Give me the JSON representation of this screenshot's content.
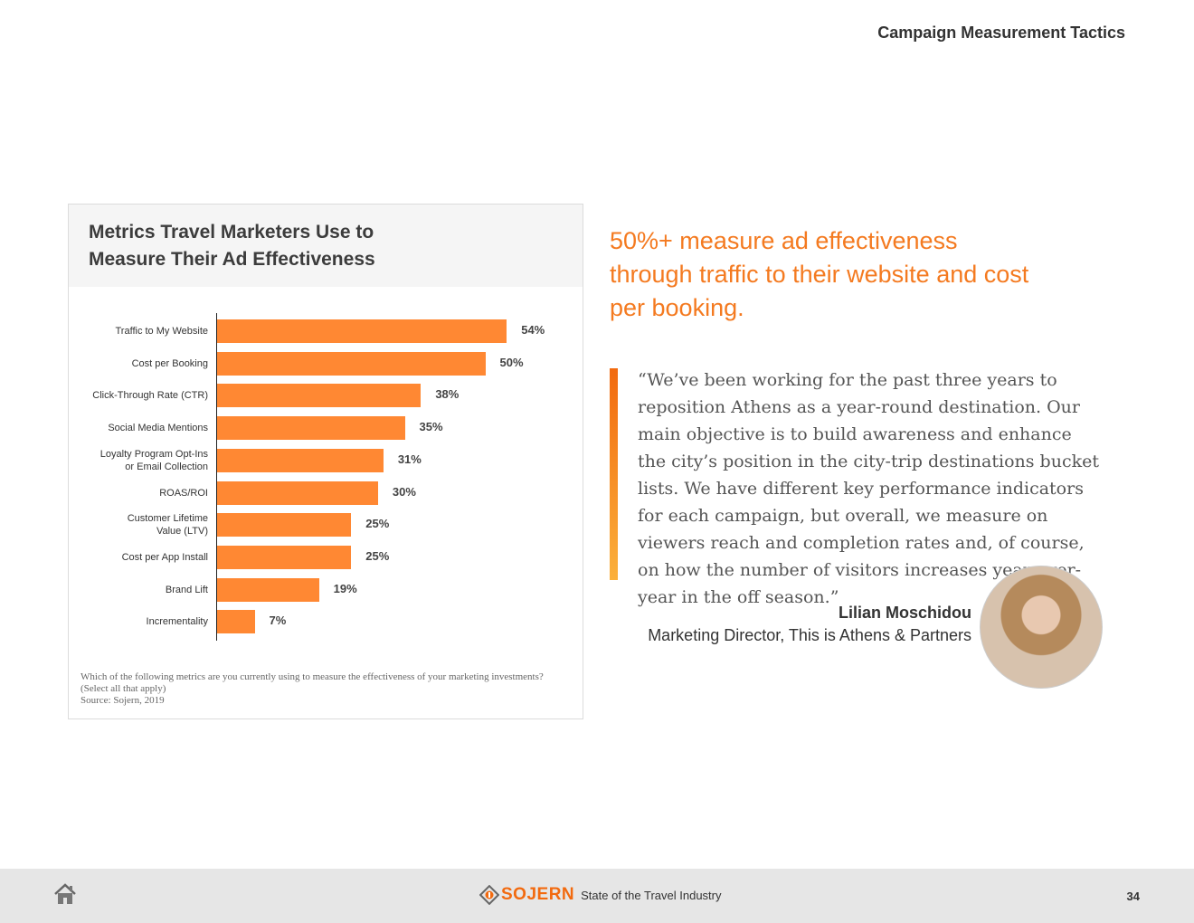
{
  "header": {
    "section_title": "Campaign Measurement Tactics"
  },
  "chart_data": {
    "type": "bar",
    "orientation": "horizontal",
    "title": "Metrics Travel Marketers Use to Measure Their Ad Effectiveness",
    "categories": [
      "Traffic to My Website",
      "Cost per Booking",
      "Click-Through Rate (CTR)",
      "Social Media Mentions",
      "Loyalty Program Opt-Ins\nor Email Collection",
      "ROAS/ROI",
      "Customer Lifetime\nValue (LTV)",
      "Cost per App Install",
      "Brand Lift",
      "Incrementality"
    ],
    "values": [
      54,
      50,
      38,
      35,
      31,
      30,
      25,
      25,
      19,
      7
    ],
    "value_labels": [
      "54%",
      "50%",
      "38%",
      "35%",
      "31%",
      "30%",
      "25%",
      "25%",
      "19%",
      "7%"
    ],
    "xlim": [
      0,
      100
    ],
    "bar_color": "#ff8833",
    "grid": false,
    "note": "Which of the following metrics are you currently using to measure the effectiveness of your marketing investments? (Select all that apply)",
    "source": "Source: Sojern, 2019"
  },
  "headline": "50%+ measure ad effectiveness through traffic to their website and cost per booking.",
  "quote": {
    "text": "“We’ve been working for the past three years to reposition Athens as a year-round destination. Our main objective is to build awareness and enhance the city’s position in the city-trip destinations bucket lists. We have different key performance indicators for each campaign, but overall, we measure on viewers reach and completion rates and, of course, on how the number of visitors increases year-over-year in the off season.”",
    "author_name": "Lilian Moschidou",
    "author_title": "Marketing Director, This is Athens & Partners"
  },
  "footer": {
    "brand": "SOJERN",
    "report_name": "State of the Travel Industry",
    "page_number": "34",
    "home_icon": "home-icon"
  },
  "colors": {
    "accent": "#f47a20",
    "footer_bg": "#e6e6e6"
  }
}
